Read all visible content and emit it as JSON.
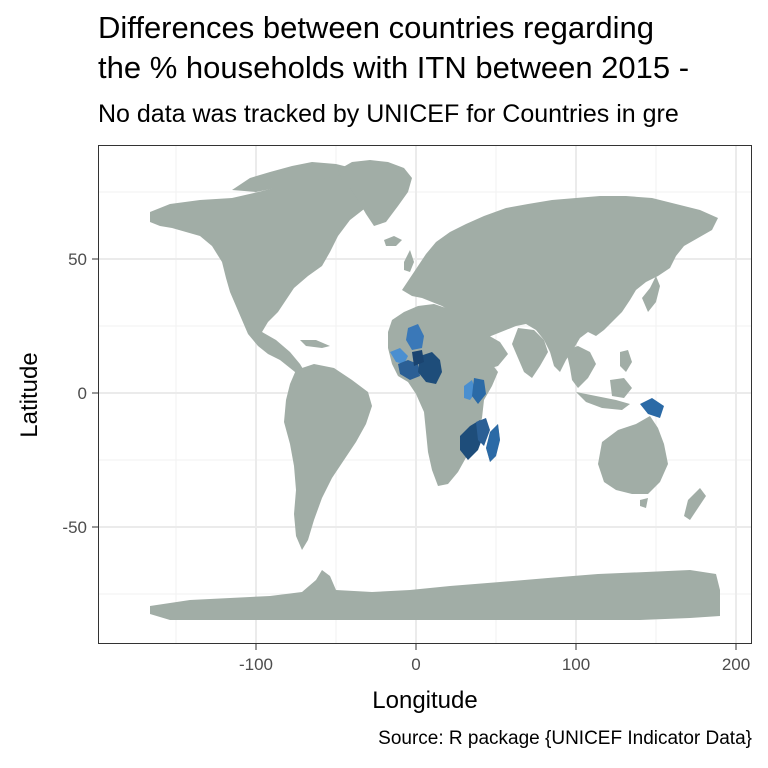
{
  "title_line1": "Differences between countries regarding",
  "title_line2": "the % households with ITN between 2015 -",
  "subtitle": "No data was tracked by UNICEF for Countries in gre",
  "caption": "Source: R package {UNICEF Indicator Data}",
  "chart_data": {
    "type": "map",
    "xlabel": "Longitude",
    "ylabel": "Latitude",
    "x_ticks": [
      "-100",
      "0",
      "100",
      "200"
    ],
    "y_ticks": [
      "50",
      "0",
      "-50"
    ],
    "xlim": [
      -198,
      210
    ],
    "ylim": [
      -93,
      92
    ],
    "grid": true,
    "colors": {
      "no_data": "#a1ada6",
      "dark_blue": "#1e4d7a",
      "mid_blue": "#2b6aa6",
      "light_blue": "#4a8fd0"
    }
  }
}
